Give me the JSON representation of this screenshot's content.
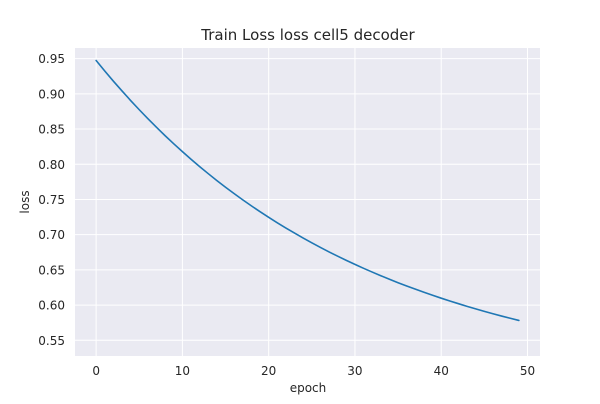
{
  "chart_data": {
    "type": "line",
    "title": "Train Loss loss cell5 decoder",
    "xlabel": "epoch",
    "ylabel": "loss",
    "xlim": [
      -2.45,
      51.45
    ],
    "ylim": [
      0.5277,
      0.9651
    ],
    "xticks": [
      0,
      10,
      20,
      30,
      40,
      50
    ],
    "yticks": [
      0.55,
      0.6,
      0.65,
      0.7,
      0.75,
      0.8,
      0.85,
      0.9,
      0.95
    ],
    "ytick_labels": [
      "0.55",
      "0.60",
      "0.65",
      "0.70",
      "0.75",
      "0.80",
      "0.85",
      "0.90",
      "0.95"
    ],
    "grid": true,
    "background": "#eaeaf2",
    "line_color": "#1f77b4",
    "series": [
      {
        "x": [
          0,
          1,
          2,
          3,
          4,
          5,
          6,
          7,
          8,
          9,
          10,
          11,
          12,
          13,
          14,
          15,
          16,
          17,
          18,
          19,
          20,
          21,
          22,
          23,
          24,
          25,
          26,
          27,
          28,
          29,
          30,
          31,
          32,
          33,
          34,
          35,
          36,
          37,
          38,
          39,
          40,
          41,
          42,
          43,
          44,
          45,
          46,
          47,
          48,
          49
        ],
        "values": [
          0.9474,
          0.9324,
          0.918,
          0.9041,
          0.8905,
          0.8774,
          0.8647,
          0.8524,
          0.8405,
          0.829,
          0.8179,
          0.8071,
          0.7967,
          0.7866,
          0.7768,
          0.7674,
          0.7583,
          0.7494,
          0.7409,
          0.7326,
          0.7246,
          0.7169,
          0.7094,
          0.7022,
          0.6952,
          0.6884,
          0.6819,
          0.6755,
          0.6694,
          0.6635,
          0.6578,
          0.6522,
          0.6469,
          0.6417,
          0.6367,
          0.6318,
          0.6271,
          0.6226,
          0.6182,
          0.6139,
          0.6098,
          0.6058,
          0.602,
          0.5982,
          0.5946,
          0.5911,
          0.5877,
          0.5844,
          0.5813,
          0.5782
        ]
      }
    ]
  }
}
